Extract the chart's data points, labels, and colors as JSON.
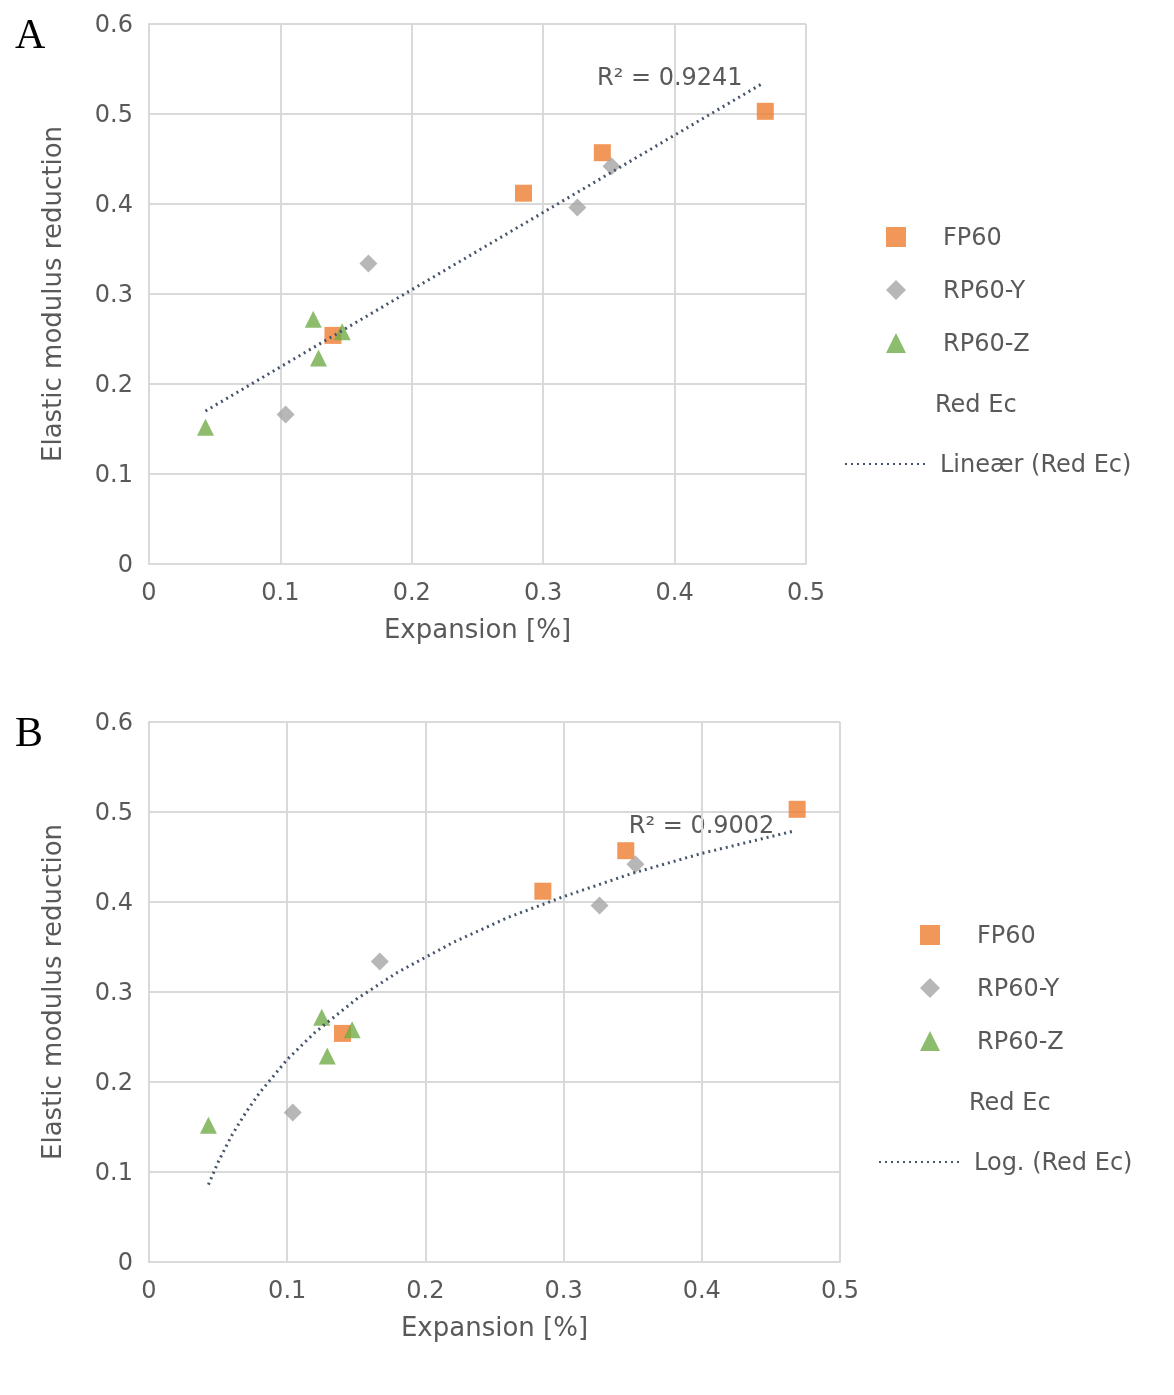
{
  "chart_data": [
    {
      "type": "scatter",
      "title": "A",
      "xlabel": "Expansion [%]",
      "ylabel": "Elastic modulus reduction",
      "xlim": [
        0,
        0.5
      ],
      "ylim": [
        0,
        0.6
      ],
      "xticks": [
        0,
        0.1,
        0.2,
        0.3,
        0.4,
        0.5
      ],
      "yticks": [
        0,
        0.1,
        0.2,
        0.3,
        0.4,
        0.5,
        0.6
      ],
      "grid": true,
      "legend": "right",
      "series": [
        {
          "name": "FP60",
          "color": "#ed7d31",
          "marker": "square",
          "x": [
            0.469,
            0.345,
            0.285,
            0.14
          ],
          "values": [
            0.503,
            0.457,
            0.412,
            0.254
          ]
        },
        {
          "name": "RP60-Y",
          "color": "#a5a5a5",
          "marker": "diamond",
          "x": [
            0.352,
            0.326,
            0.167,
            0.104
          ],
          "values": [
            0.442,
            0.396,
            0.334,
            0.166
          ]
        },
        {
          "name": "RP60-Z",
          "color": "#70ad47",
          "marker": "triangle",
          "x": [
            0.125,
            0.147,
            0.129,
            0.043
          ],
          "values": [
            0.272,
            0.258,
            0.229,
            0.152
          ]
        },
        {
          "name": "Lineær (Red Ec)",
          "type": "line",
          "color": "#44546a",
          "marker": "none",
          "line_style": "dotted",
          "x": [
            0.043,
            0.467
          ],
          "values": [
            0.17,
            0.534
          ]
        }
      ],
      "annotations": [
        "R² = 0.9241",
        "Red Ec"
      ]
    },
    {
      "type": "scatter",
      "title": "B",
      "xlabel": "Expansion [%]",
      "ylabel": "Elastic modulus reduction",
      "xlim": [
        0,
        0.5
      ],
      "ylim": [
        0,
        0.6
      ],
      "xticks": [
        0,
        0.1,
        0.2,
        0.3,
        0.4,
        0.5
      ],
      "yticks": [
        0,
        0.1,
        0.2,
        0.3,
        0.4,
        0.5,
        0.6
      ],
      "grid": true,
      "legend": "right",
      "series": [
        {
          "name": "FP60",
          "color": "#ed7d31",
          "marker": "square",
          "x": [
            0.469,
            0.345,
            0.285,
            0.14
          ],
          "values": [
            0.503,
            0.457,
            0.412,
            0.254
          ]
        },
        {
          "name": "RP60-Y",
          "color": "#a5a5a5",
          "marker": "diamond",
          "x": [
            0.352,
            0.326,
            0.167,
            0.104
          ],
          "values": [
            0.442,
            0.396,
            0.334,
            0.166
          ]
        },
        {
          "name": "RP60-Z",
          "color": "#70ad47",
          "marker": "triangle",
          "x": [
            0.125,
            0.147,
            0.129,
            0.043
          ],
          "values": [
            0.272,
            0.258,
            0.229,
            0.152
          ]
        },
        {
          "name": "Log. (Red Ec)",
          "type": "line",
          "color": "#44546a",
          "marker": "none",
          "line_style": "dotted",
          "x": [
            0.043,
            0.05,
            0.06,
            0.07,
            0.08,
            0.1,
            0.12,
            0.15,
            0.18,
            0.22,
            0.26,
            0.3,
            0.35,
            0.4,
            0.467
          ],
          "values": [
            0.086,
            0.111,
            0.141,
            0.166,
            0.188,
            0.225,
            0.255,
            0.292,
            0.322,
            0.355,
            0.383,
            0.406,
            0.432,
            0.454,
            0.479
          ]
        }
      ],
      "annotations": [
        "R² = 0.9002",
        "Red Ec"
      ]
    }
  ]
}
